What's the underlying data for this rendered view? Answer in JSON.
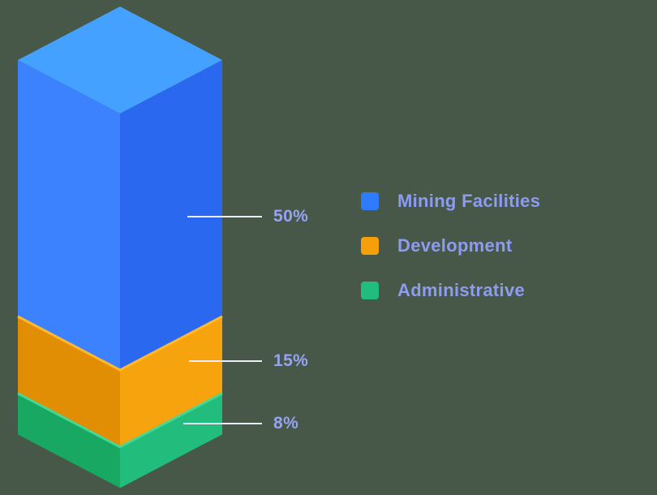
{
  "colors": {
    "background": "#485848",
    "label_text": "#8d9bf1",
    "callout_line": "#e9edf5"
  },
  "chart_data": {
    "type": "bar",
    "subtype": "3d-isometric-stacked-column",
    "title": "",
    "unit": "%",
    "legend_position": "right",
    "segments": [
      {
        "label": "Mining Facilities",
        "value": 50,
        "display": "50%",
        "color": "#2e7bfb",
        "face_top": "#45a1ff",
        "face_left": "#3c82ff",
        "face_right": "#2b68f0",
        "edge": "#45a1ff"
      },
      {
        "label": "Development",
        "value": 15,
        "display": "15%",
        "color": "#f59f0a",
        "face_left": "#e18e05",
        "face_right": "#f7a30d",
        "edge": "#ffb82e"
      },
      {
        "label": "Administrative",
        "value": 8,
        "display": "8%",
        "color": "#21bd7c",
        "face_left": "#18a862",
        "face_right": "#22bd7c",
        "edge": "#46d795"
      }
    ]
  }
}
